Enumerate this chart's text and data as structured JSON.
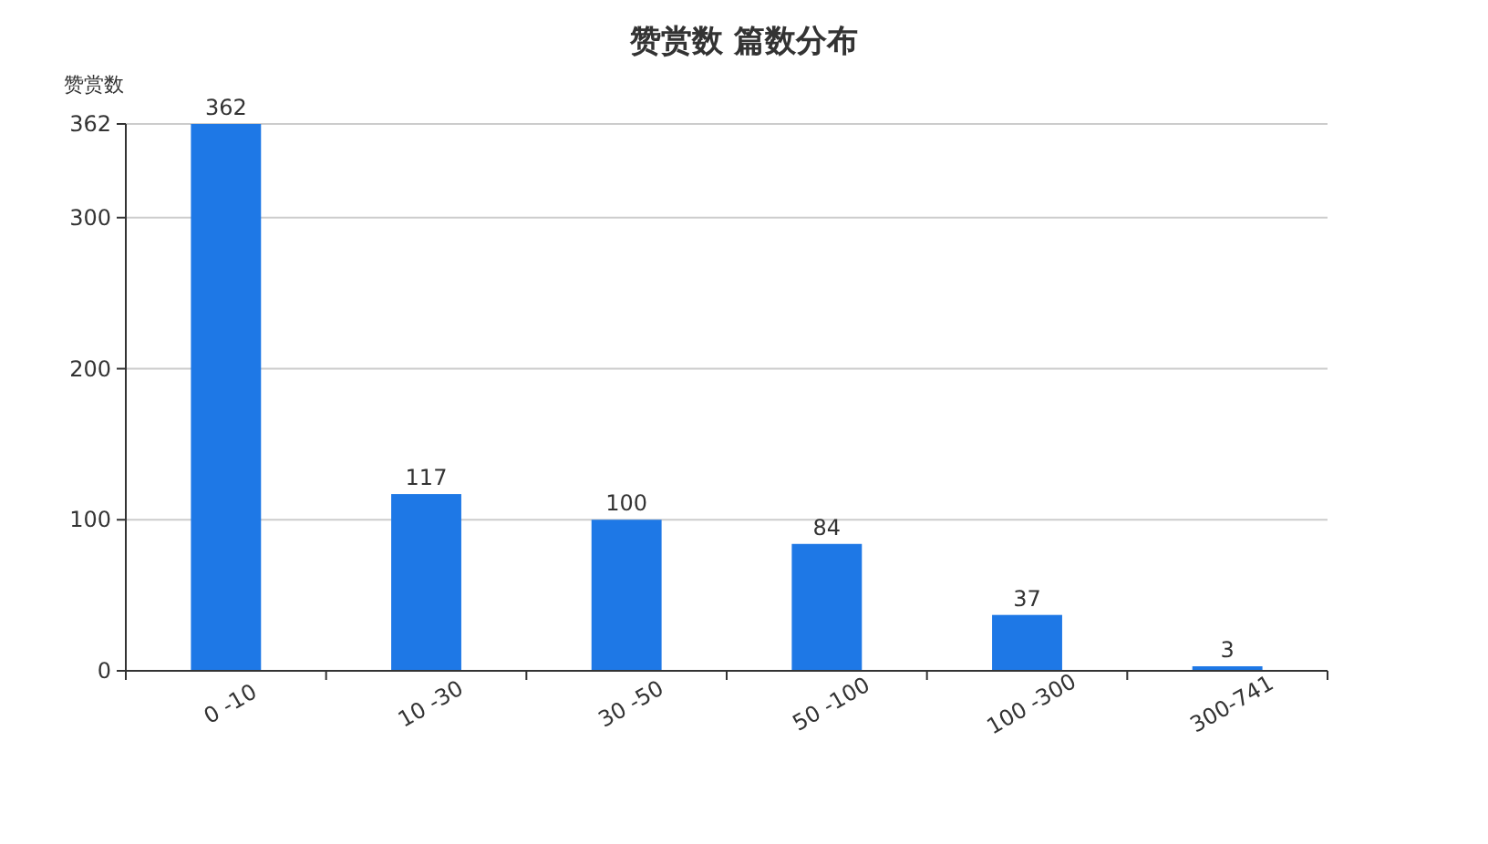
{
  "chart_data": {
    "type": "bar",
    "title": "赞赏数 篇数分布",
    "ylabel": "赞赏数",
    "categories": [
      "0 -10",
      "10 -30",
      "30 -50",
      "50 -100",
      "100 -300",
      "300-741"
    ],
    "values": [
      362,
      117,
      100,
      84,
      37,
      3
    ],
    "color": "#1e78e6",
    "ylim": [
      0,
      362
    ],
    "yticks": [
      0,
      100,
      200,
      300,
      362
    ],
    "grid": "y",
    "data_labels": true
  }
}
